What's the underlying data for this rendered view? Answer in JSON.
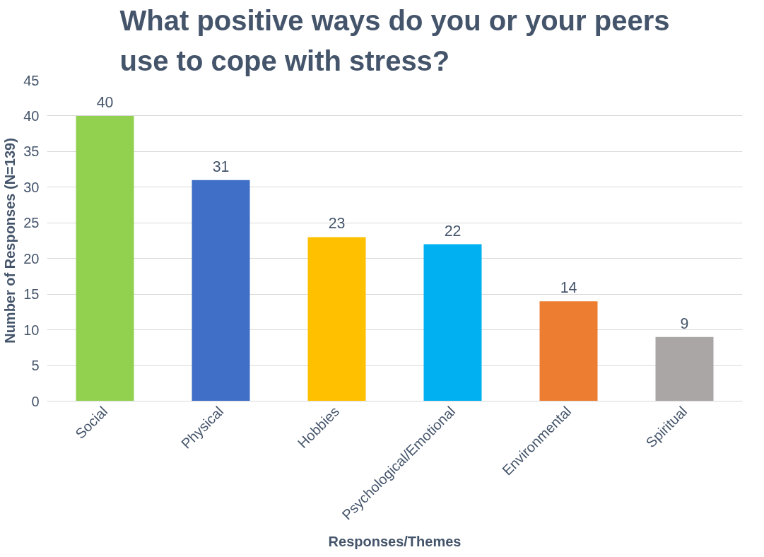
{
  "chart_data": {
    "type": "bar",
    "title": "What positive ways do you or your peers use to cope with stress?",
    "xlabel": "Responses/Themes",
    "ylabel": "Number of Responses (N=139)",
    "categories": [
      "Social",
      "Physical",
      "Hobbies",
      "Psychological/Emotional",
      "Environmental",
      "Spiritual"
    ],
    "values": [
      40,
      31,
      23,
      22,
      14,
      9
    ],
    "colors": [
      "#92d050",
      "#3f6fc6",
      "#ffc000",
      "#00b0f0",
      "#ed7d31",
      "#a9a6a5"
    ],
    "ylim": [
      0,
      45
    ],
    "yticks": [
      0,
      5,
      10,
      15,
      20,
      25,
      30,
      35,
      40,
      45
    ],
    "grid": "y",
    "data_labels": true
  }
}
